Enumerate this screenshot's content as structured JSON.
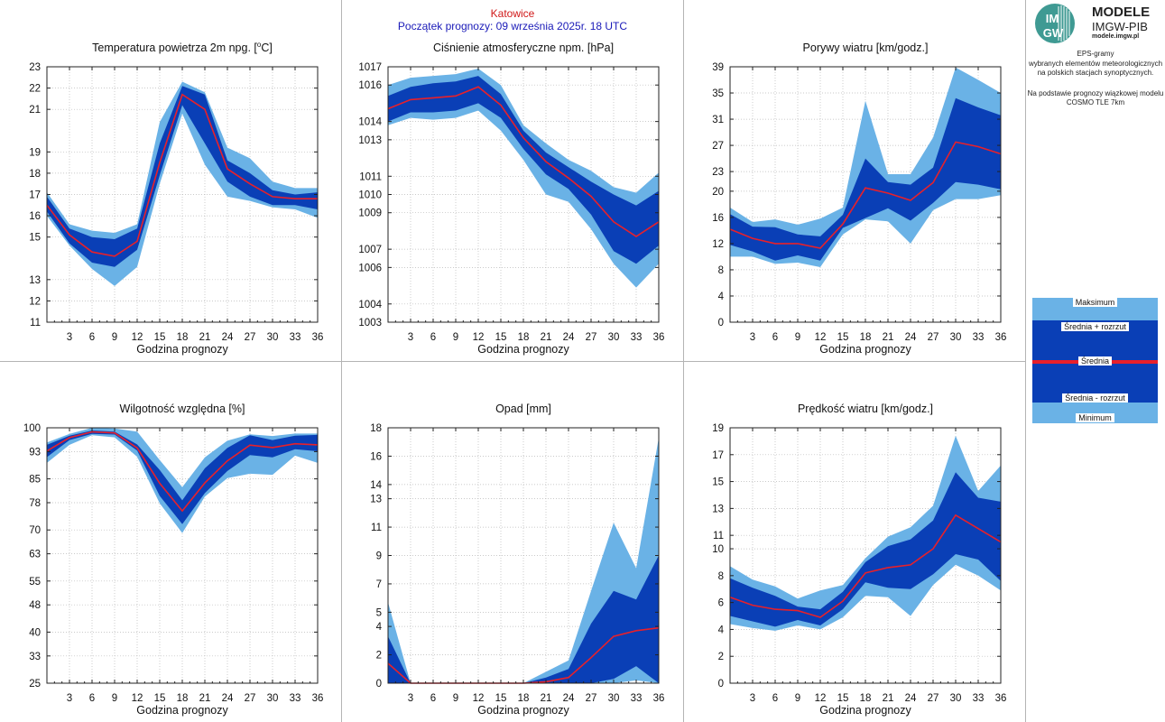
{
  "header": {
    "station": "Katowice",
    "forecast_start": "Początek prognozy: 09 września 2025r. 18 UTC"
  },
  "logo": {
    "mark_text": "IMGW",
    "brand_line1": "MODELE",
    "brand_line2": "IMGW-PIB",
    "brand_line3": "modele.imgw.pl"
  },
  "description": {
    "line1": "EPS-gramy",
    "line2": "wybranych elementów meteorologicznych",
    "line3": "na polskich stacjach  synoptycznych.",
    "line4": "Na podstawie prognozy wiązkowej modelu",
    "line5": "COSMO TLE 7km"
  },
  "legend": {
    "max": "Maksimum",
    "mean_plus": "Średnia + rozrzut",
    "mean": "Średnia",
    "mean_minus": "Średnia - rozrzut",
    "min": "Minimum"
  },
  "colors": {
    "envelope": "#6ab2e6",
    "spread": "#0a3fb6",
    "mean": "#e8202a",
    "station_text": "#d01818",
    "header_text": "#1a1ab8"
  },
  "chart_data": [
    {
      "type": "area",
      "title": "Temperatura powietrza 2m npg. [°C]",
      "xlabel": "Godzina prognozy",
      "ylabel": "",
      "x": [
        0,
        3,
        6,
        9,
        12,
        15,
        18,
        21,
        24,
        27,
        30,
        33,
        36
      ],
      "xticks": [
        3,
        6,
        9,
        12,
        15,
        18,
        21,
        24,
        27,
        30,
        33,
        36
      ],
      "xlim": [
        0,
        36
      ],
      "ylim": [
        11,
        23
      ],
      "yticks": [
        11,
        12,
        13,
        15,
        16,
        17,
        18,
        19,
        21,
        22,
        23
      ],
      "grid": true,
      "series": [
        {
          "name": "Maksimum",
          "values": [
            17.1,
            15.6,
            15.3,
            15.2,
            15.6,
            20.4,
            22.3,
            21.8,
            19.2,
            18.7,
            17.6,
            17.3,
            17.3
          ]
        },
        {
          "name": "Średnia + rozrzut",
          "values": [
            16.9,
            15.4,
            15.0,
            14.9,
            15.4,
            19.4,
            22.1,
            21.7,
            18.6,
            18.0,
            17.2,
            17.0,
            17.1
          ]
        },
        {
          "name": "Średnia",
          "values": [
            16.5,
            15.1,
            14.3,
            14.1,
            14.8,
            18.5,
            21.7,
            21.0,
            18.2,
            17.5,
            16.9,
            16.8,
            16.8
          ]
        },
        {
          "name": "Średnia - rozrzut",
          "values": [
            16.2,
            14.7,
            13.8,
            13.6,
            14.4,
            17.9,
            21.2,
            19.4,
            17.6,
            16.9,
            16.5,
            16.5,
            16.3
          ]
        },
        {
          "name": "Minimum",
          "values": [
            16.0,
            14.6,
            13.5,
            12.7,
            13.6,
            17.5,
            20.8,
            18.4,
            16.9,
            16.7,
            16.4,
            16.3,
            15.9
          ]
        }
      ]
    },
    {
      "type": "area",
      "title": "Ciśnienie atmosferyczne npm. [hPa]",
      "xlabel": "Godzina prognozy",
      "ylabel": "",
      "x": [
        0,
        3,
        6,
        9,
        12,
        15,
        18,
        21,
        24,
        27,
        30,
        33,
        36
      ],
      "xticks": [
        3,
        6,
        9,
        12,
        15,
        18,
        21,
        24,
        27,
        30,
        33,
        36
      ],
      "xlim": [
        0,
        36
      ],
      "ylim": [
        1003,
        1017
      ],
      "yticks": [
        1003,
        1004,
        1006,
        1007,
        1009,
        1010,
        1011,
        1013,
        1014,
        1016,
        1017
      ],
      "grid": true,
      "series": [
        {
          "name": "Maksimum",
          "values": [
            1016.0,
            1016.4,
            1016.5,
            1016.6,
            1016.9,
            1016.0,
            1013.8,
            1012.8,
            1011.9,
            1011.3,
            1010.4,
            1010.1,
            1011.2
          ]
        },
        {
          "name": "Średnia + rozrzut",
          "values": [
            1015.4,
            1015.9,
            1016.1,
            1016.2,
            1016.5,
            1015.5,
            1013.5,
            1012.3,
            1011.5,
            1010.7,
            1010.0,
            1009.4,
            1010.2
          ]
        },
        {
          "name": "Średnia",
          "values": [
            1014.7,
            1015.2,
            1015.3,
            1015.4,
            1015.9,
            1014.9,
            1013.1,
            1011.8,
            1010.9,
            1009.9,
            1008.5,
            1007.7,
            1008.5
          ]
        },
        {
          "name": "Średnia - rozrzut",
          "values": [
            1014.0,
            1014.5,
            1014.5,
            1014.6,
            1015.0,
            1014.2,
            1012.5,
            1011.1,
            1010.3,
            1008.9,
            1006.9,
            1006.2,
            1007.2
          ]
        },
        {
          "name": "Minimum",
          "values": [
            1013.8,
            1014.2,
            1014.1,
            1014.2,
            1014.6,
            1013.5,
            1011.9,
            1010.0,
            1009.6,
            1008.1,
            1006.2,
            1004.9,
            1006.2
          ]
        }
      ]
    },
    {
      "type": "area",
      "title": "Porywy wiatru [km/godz.]",
      "xlabel": "Godzina prognozy",
      "ylabel": "",
      "x": [
        0,
        3,
        6,
        9,
        12,
        15,
        18,
        21,
        24,
        27,
        30,
        33,
        36
      ],
      "xticks": [
        3,
        6,
        9,
        12,
        15,
        18,
        21,
        24,
        27,
        30,
        33,
        36
      ],
      "xlim": [
        0,
        36
      ],
      "ylim": [
        0,
        39
      ],
      "yticks": [
        0,
        4,
        8,
        12,
        16,
        20,
        23,
        27,
        31,
        35,
        39
      ],
      "grid": true,
      "series": [
        {
          "name": "Maksimum",
          "values": [
            17.5,
            15.3,
            15.7,
            14.9,
            15.8,
            17.5,
            33.8,
            22.6,
            22.6,
            28.2,
            38.9,
            37.0,
            35.0
          ]
        },
        {
          "name": "Średnia + rozrzut",
          "values": [
            16.5,
            14.6,
            14.5,
            13.4,
            13.1,
            16.4,
            25.0,
            21.4,
            21.0,
            23.6,
            34.2,
            32.8,
            31.6
          ]
        },
        {
          "name": "Średnia",
          "values": [
            14.2,
            12.8,
            12.0,
            12.0,
            11.3,
            15.0,
            20.5,
            19.7,
            18.6,
            21.3,
            27.5,
            26.8,
            25.7
          ]
        },
        {
          "name": "Średnia - rozrzut",
          "values": [
            11.8,
            10.8,
            9.4,
            10.2,
            9.4,
            14.4,
            15.9,
            17.4,
            15.5,
            18.2,
            21.4,
            21.0,
            20.3
          ]
        },
        {
          "name": "Minimum",
          "values": [
            10.0,
            10.0,
            8.9,
            9.1,
            8.4,
            13.4,
            15.7,
            15.4,
            12.0,
            17.1,
            18.8,
            18.8,
            19.4
          ]
        }
      ]
    },
    {
      "type": "area",
      "title": "Wilgotność względna [%]",
      "xlabel": "Godzina prognozy",
      "ylabel": "",
      "x": [
        0,
        3,
        6,
        9,
        12,
        15,
        18,
        21,
        24,
        27,
        30,
        33,
        36
      ],
      "xticks": [
        3,
        6,
        9,
        12,
        15,
        18,
        21,
        24,
        27,
        30,
        33,
        36
      ],
      "xlim": [
        0,
        36
      ],
      "ylim": [
        25,
        100
      ],
      "yticks": [
        25,
        33,
        40,
        48,
        55,
        63,
        70,
        78,
        85,
        93,
        100
      ],
      "grid": true,
      "series": [
        {
          "name": "Maksimum",
          "values": [
            95.7,
            98.2,
            100.0,
            99.8,
            98.9,
            90.5,
            82.6,
            91.3,
            96.2,
            98.1,
            97.6,
            98.3,
            98.3
          ]
        },
        {
          "name": "Średnia + rozrzut",
          "values": [
            95.0,
            97.7,
            99.2,
            98.9,
            95.1,
            87.6,
            78.7,
            88.1,
            94.1,
            97.8,
            96.4,
            97.7,
            97.9
          ]
        },
        {
          "name": "Średnia",
          "values": [
            93.2,
            97.1,
            98.8,
            98.5,
            94.1,
            83.7,
            75.6,
            83.8,
            90.3,
            94.9,
            94.2,
            95.3,
            95.0
          ]
        },
        {
          "name": "Średnia - rozrzut",
          "values": [
            91.4,
            96.4,
            98.2,
            98.0,
            93.3,
            80.0,
            71.7,
            80.8,
            87.3,
            92.0,
            91.3,
            93.7,
            93.1
          ]
        },
        {
          "name": "Minimum",
          "values": [
            89.7,
            95.0,
            97.8,
            97.2,
            91.5,
            77.8,
            69.1,
            79.8,
            85.2,
            86.5,
            86.2,
            91.8,
            89.7
          ]
        }
      ]
    },
    {
      "type": "area",
      "title": "Opad [mm]",
      "xlabel": "Godzina prognozy",
      "ylabel": "",
      "x": [
        0,
        3,
        6,
        9,
        12,
        15,
        18,
        21,
        24,
        27,
        30,
        33,
        36
      ],
      "xticks": [
        3,
        6,
        9,
        12,
        15,
        18,
        21,
        24,
        27,
        30,
        33,
        36
      ],
      "xlim": [
        0,
        36
      ],
      "ylim": [
        0,
        18
      ],
      "yticks": [
        0,
        2,
        4,
        5,
        7,
        9,
        11,
        13,
        14,
        16,
        18
      ],
      "grid": true,
      "series": [
        {
          "name": "Maksimum",
          "values": [
            5.7,
            0.0,
            0.0,
            0.0,
            0.0,
            0.0,
            0.0,
            0.8,
            1.6,
            6.5,
            11.3,
            8.1,
            17.3
          ]
        },
        {
          "name": "Średnia + rozrzut",
          "values": [
            3.3,
            0.0,
            0.0,
            0.0,
            0.0,
            0.0,
            0.0,
            0.4,
            1.0,
            4.2,
            6.5,
            5.9,
            9.0
          ]
        },
        {
          "name": "Średnia",
          "values": [
            1.4,
            0.0,
            0.0,
            0.0,
            0.0,
            0.0,
            0.0,
            0.1,
            0.4,
            1.8,
            3.3,
            3.7,
            3.9
          ]
        },
        {
          "name": "Średnia - rozrzut",
          "values": [
            0.0,
            0.0,
            0.0,
            0.0,
            0.0,
            0.0,
            0.0,
            0.0,
            0.0,
            0.0,
            0.3,
            1.2,
            0.0
          ]
        },
        {
          "name": "Minimum",
          "values": [
            0.0,
            0.0,
            0.0,
            0.0,
            0.0,
            0.0,
            0.0,
            0.0,
            0.0,
            0.0,
            0.0,
            0.2,
            0.0
          ]
        }
      ]
    },
    {
      "type": "area",
      "title": "Prędkość wiatru [km/godz.]",
      "xlabel": "Godzina prognozy",
      "ylabel": "",
      "x": [
        0,
        3,
        6,
        9,
        12,
        15,
        18,
        21,
        24,
        27,
        30,
        33,
        36
      ],
      "xticks": [
        3,
        6,
        9,
        12,
        15,
        18,
        21,
        24,
        27,
        30,
        33,
        36
      ],
      "xlim": [
        0,
        36
      ],
      "ylim": [
        0,
        19
      ],
      "yticks": [
        0,
        2,
        4,
        6,
        8,
        10,
        11,
        13,
        15,
        17,
        19
      ],
      "grid": true,
      "series": [
        {
          "name": "Maksimum",
          "values": [
            8.7,
            7.7,
            7.2,
            6.3,
            6.9,
            7.3,
            9.3,
            10.9,
            11.6,
            13.2,
            18.4,
            14.3,
            16.2
          ]
        },
        {
          "name": "Średnia + rozrzut",
          "values": [
            7.8,
            7.1,
            6.5,
            5.7,
            5.5,
            6.8,
            9.0,
            10.2,
            10.7,
            12.1,
            15.7,
            13.8,
            13.5
          ]
        },
        {
          "name": "Średnia",
          "values": [
            6.4,
            5.8,
            5.5,
            5.4,
            4.9,
            6.1,
            8.2,
            8.6,
            8.8,
            10.0,
            12.5,
            11.5,
            10.5
          ]
        },
        {
          "name": "Średnia - rozrzut",
          "values": [
            5.0,
            4.6,
            4.2,
            4.7,
            4.3,
            5.5,
            7.5,
            7.1,
            7.0,
            8.1,
            9.6,
            9.2,
            7.6
          ]
        },
        {
          "name": "Minimum",
          "values": [
            4.4,
            4.1,
            3.9,
            4.3,
            4.0,
            4.9,
            6.5,
            6.4,
            5.0,
            7.3,
            8.8,
            8.0,
            6.9
          ]
        }
      ]
    }
  ]
}
